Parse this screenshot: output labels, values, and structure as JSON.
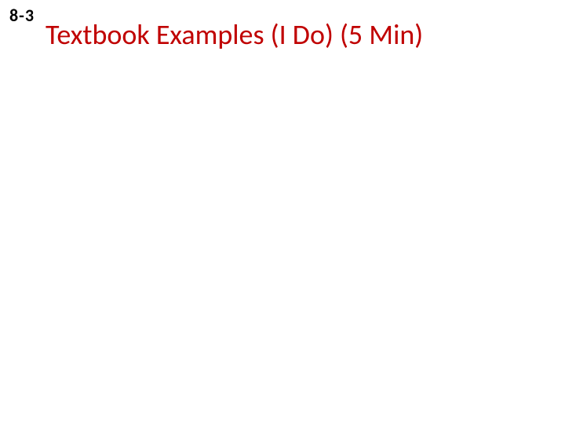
{
  "header": {
    "lesson_number": "8-3",
    "title": "Textbook Examples (I Do) (5 Min)"
  },
  "styles": {
    "lesson_number_color": "#000000",
    "lesson_number_fontsize": 22,
    "title_color": "#c00000",
    "title_fontsize": 36,
    "background_color": "#ffffff"
  }
}
